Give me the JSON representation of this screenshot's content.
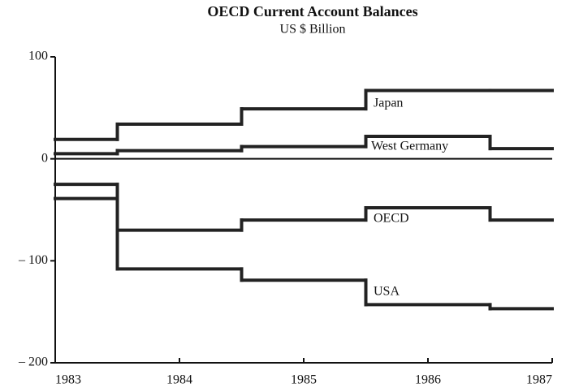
{
  "chart_data": {
    "type": "step",
    "title": "OECD Current Account Balances",
    "subtitle": "US $ Billion",
    "x": [
      1983,
      1983.5,
      1984.5,
      1985.5,
      1986.5
    ],
    "series": [
      {
        "name": "Japan",
        "color": "#222222",
        "values": [
          19,
          34,
          49,
          67,
          67
        ]
      },
      {
        "name": "West Germany",
        "color": "#222222",
        "values": [
          5,
          8,
          12,
          22,
          10
        ]
      },
      {
        "name": "OECD",
        "color": "#222222",
        "values": [
          -25,
          -70,
          -60,
          -48,
          -60
        ]
      },
      {
        "name": "USA",
        "color": "#222222",
        "values": [
          -39,
          -108,
          -119,
          -143,
          -147
        ]
      }
    ],
    "xlim": [
      1983,
      1987
    ],
    "xticks": [
      1983,
      1984,
      1985,
      1986,
      1987
    ],
    "ylim": [
      -200,
      100
    ],
    "yticks": [
      100,
      0,
      {
        "value": -100,
        "label": "– 100"
      },
      {
        "value": -200,
        "label": "– 200"
      }
    ]
  }
}
